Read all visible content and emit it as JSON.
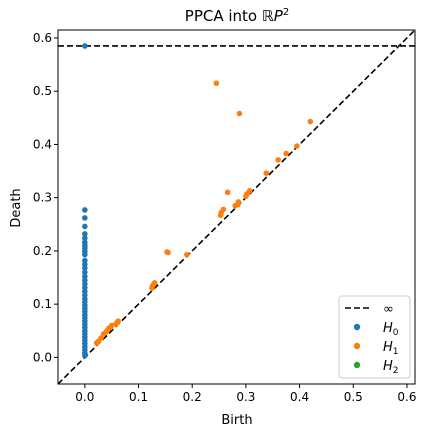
{
  "chart_data": {
    "type": "scatter",
    "title": "PPCA into ",
    "title_math": "ℝP",
    "title_sup": "2",
    "xlabel": "Birth",
    "ylabel": "Death",
    "xlim": [
      -0.05,
      0.615
    ],
    "ylim": [
      -0.05,
      0.615
    ],
    "x_ticks": [
      0.0,
      0.1,
      0.2,
      0.3,
      0.4,
      0.5,
      0.6
    ],
    "x_tick_labels": [
      "0.0",
      "0.1",
      "0.2",
      "0.3",
      "0.4",
      "0.5",
      "0.6"
    ],
    "y_ticks": [
      0.0,
      0.1,
      0.2,
      0.3,
      0.4,
      0.5,
      0.6
    ],
    "y_tick_labels": [
      "0.0",
      "0.1",
      "0.2",
      "0.3",
      "0.4",
      "0.5",
      "0.6"
    ],
    "infinity_death": 0.585,
    "grid": false,
    "legend_position": "lower-right",
    "legend": [
      {
        "label": "∞",
        "type": "dashed-line",
        "color": "#000000"
      },
      {
        "label": "H",
        "sub": "0",
        "type": "marker",
        "color": "#1f77b4"
      },
      {
        "label": "H",
        "sub": "1",
        "type": "marker",
        "color": "#ff7f0e"
      },
      {
        "label": "H",
        "sub": "2",
        "type": "marker",
        "color": "#2ca02c"
      }
    ],
    "series": [
      {
        "name": "H0",
        "color": "#1f77b4",
        "points": [
          [
            0,
            0.585
          ],
          [
            0,
            0.277
          ],
          [
            0,
            0.262
          ],
          [
            0,
            0.246
          ],
          [
            0,
            0.232
          ],
          [
            0,
            0.224
          ],
          [
            0,
            0.216
          ],
          [
            0,
            0.21
          ],
          [
            0,
            0.205
          ],
          [
            0,
            0.199
          ],
          [
            0,
            0.193
          ],
          [
            0,
            0.182
          ],
          [
            0,
            0.175
          ],
          [
            0,
            0.168
          ],
          [
            0,
            0.16
          ],
          [
            0,
            0.152
          ],
          [
            0,
            0.145
          ],
          [
            0,
            0.138
          ],
          [
            0,
            0.131
          ],
          [
            0,
            0.124
          ],
          [
            0,
            0.117
          ],
          [
            0,
            0.11
          ],
          [
            0,
            0.104
          ],
          [
            0,
            0.098
          ],
          [
            0,
            0.092
          ],
          [
            0,
            0.086
          ],
          [
            0,
            0.08
          ],
          [
            0,
            0.074
          ],
          [
            0,
            0.068
          ],
          [
            0,
            0.062
          ],
          [
            0,
            0.056
          ],
          [
            0,
            0.05
          ],
          [
            0,
            0.044
          ],
          [
            0,
            0.038
          ],
          [
            0,
            0.032
          ],
          [
            0,
            0.026
          ],
          [
            0,
            0.02
          ],
          [
            0,
            0.014
          ],
          [
            0,
            0.008
          ],
          [
            0,
            0.003
          ]
        ]
      },
      {
        "name": "H1",
        "color": "#ff7f0e",
        "points": [
          [
            0.245,
            0.515
          ],
          [
            0.288,
            0.458
          ],
          [
            0.42,
            0.443
          ],
          [
            0.395,
            0.397
          ],
          [
            0.375,
            0.383
          ],
          [
            0.36,
            0.371
          ],
          [
            0.338,
            0.346
          ],
          [
            0.307,
            0.313
          ],
          [
            0.302,
            0.307
          ],
          [
            0.3,
            0.303
          ],
          [
            0.286,
            0.292
          ],
          [
            0.28,
            0.285
          ],
          [
            0.285,
            0.287
          ],
          [
            0.266,
            0.31
          ],
          [
            0.258,
            0.278
          ],
          [
            0.254,
            0.272
          ],
          [
            0.253,
            0.267
          ],
          [
            0.19,
            0.193
          ],
          [
            0.153,
            0.198
          ],
          [
            0.155,
            0.197
          ],
          [
            0.13,
            0.14
          ],
          [
            0.128,
            0.137
          ],
          [
            0.126,
            0.134
          ],
          [
            0.125,
            0.13
          ],
          [
            0.062,
            0.068
          ],
          [
            0.06,
            0.065
          ],
          [
            0.058,
            0.063
          ],
          [
            0.05,
            0.06
          ],
          [
            0.048,
            0.056
          ],
          [
            0.045,
            0.055
          ],
          [
            0.043,
            0.052
          ],
          [
            0.04,
            0.048
          ],
          [
            0.035,
            0.044
          ],
          [
            0.03,
            0.036
          ],
          [
            0.025,
            0.03
          ],
          [
            0.022,
            0.027
          ]
        ]
      },
      {
        "name": "H2",
        "color": "#2ca02c",
        "points": []
      }
    ]
  }
}
